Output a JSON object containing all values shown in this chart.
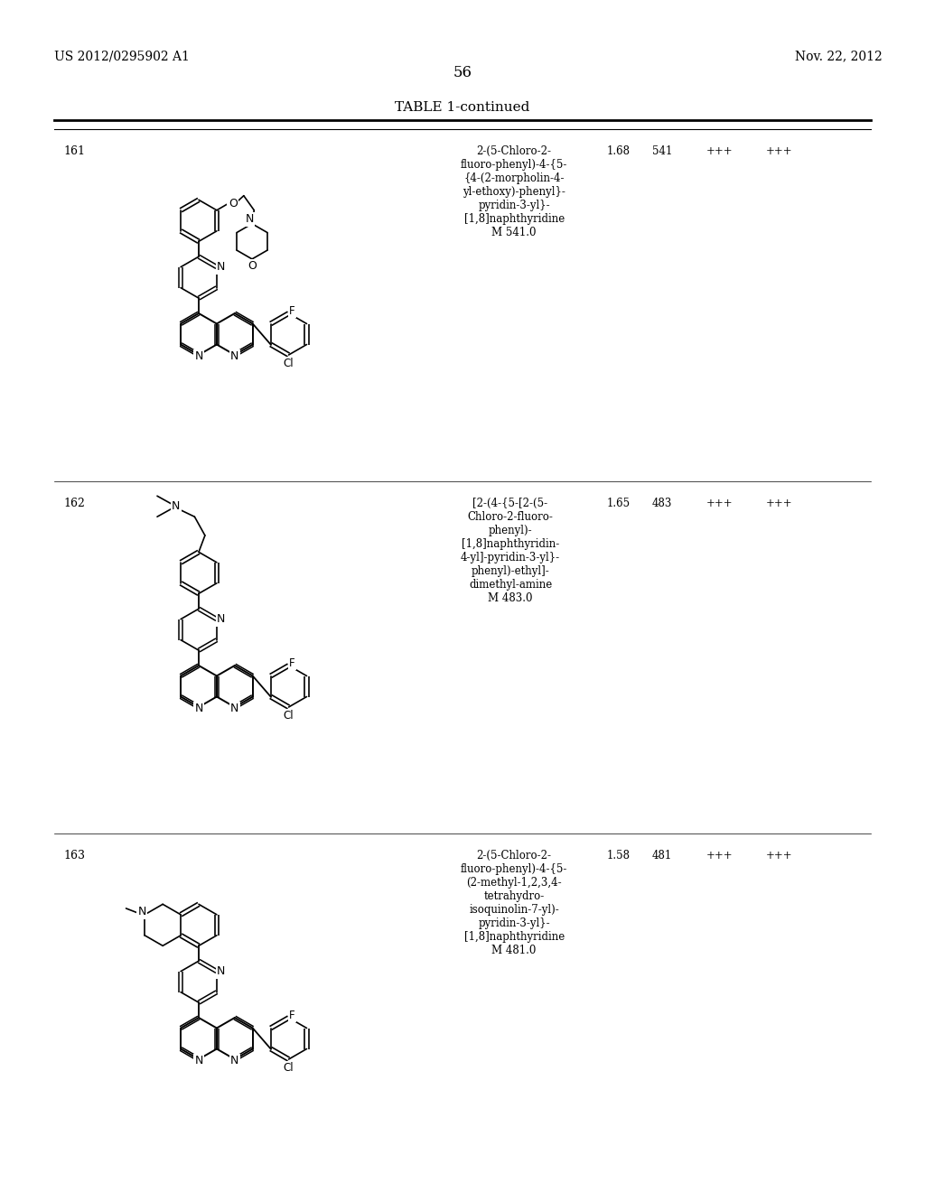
{
  "page_header_left": "US 2012/0295902 A1",
  "page_header_right": "Nov. 22, 2012",
  "page_number": "56",
  "table_title": "TABLE 1-continued",
  "background_color": "#ffffff",
  "text_color": "#000000",
  "rows": [
    {
      "id": "161",
      "name": "2-(5-Chloro-2-\nfluoro-phenyl)-4-{5-\n{4-(2-morpholin-4-\nyl-ethoxy)-phenyl}-\npyridin-3-yl}-\n[1,8]naphthyridine\nM 541.0",
      "rt": "1.68",
      "mw": "541",
      "col4": "+++",
      "col5": "+++"
    },
    {
      "id": "162",
      "name": "[2-(4-{5-[2-(5-\nChloro-2-fluoro-\nphenyl)-\n[1,8]naphthyridin-\n4-yl]-pyridin-3-yl}-\nphenyl)-ethyl]-\ndimethyl-amine\nM 483.0",
      "rt": "1.65",
      "mw": "483",
      "col4": "+++",
      "col5": "+++"
    },
    {
      "id": "163",
      "name": "2-(5-Chloro-2-\nfluoro-phenyl)-4-{5-\n(2-methyl-1,2,3,4-\ntetrahydro-\nisoquinolin-7-yl)-\npyridin-3-yl}-\n[1,8]naphthyridine\nM 481.0",
      "rt": "1.58",
      "mw": "481",
      "col4": "+++",
      "col5": "+++"
    }
  ],
  "col_x": {
    "id": 70,
    "name": 510,
    "rt": 672,
    "mw": 722,
    "col4": 782,
    "col5": 848
  }
}
